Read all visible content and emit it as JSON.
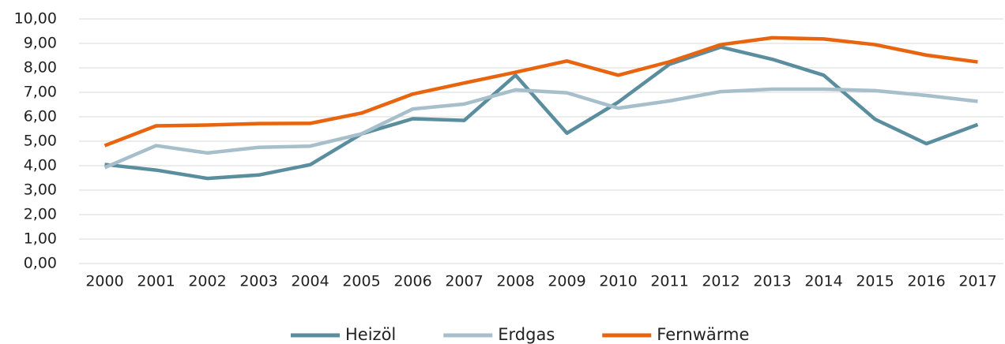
{
  "chart_data": {
    "type": "line",
    "categories": [
      "2000",
      "2001",
      "2002",
      "2003",
      "2004",
      "2005",
      "2006",
      "2007",
      "2008",
      "2009",
      "2010",
      "2011",
      "2012",
      "2013",
      "2014",
      "2015",
      "2016",
      "2017"
    ],
    "series": [
      {
        "name": "Heizöl",
        "color": "#5a8e9f",
        "values": [
          4.05,
          3.82,
          3.48,
          3.62,
          4.04,
          5.3,
          5.92,
          5.85,
          7.7,
          5.33,
          6.6,
          8.15,
          8.85,
          8.35,
          7.7,
          5.9,
          4.9,
          5.68
        ]
      },
      {
        "name": "Erdgas",
        "color": "#a6bfcb",
        "values": [
          3.92,
          4.82,
          4.52,
          4.75,
          4.8,
          5.3,
          6.32,
          6.52,
          7.1,
          6.98,
          6.35,
          6.65,
          7.03,
          7.13,
          7.13,
          7.07,
          6.87,
          6.63
        ]
      },
      {
        "name": "Fernwärme",
        "color": "#e8640f",
        "values": [
          4.82,
          5.63,
          5.66,
          5.72,
          5.73,
          6.15,
          6.93,
          7.38,
          7.82,
          8.28,
          7.7,
          8.25,
          8.95,
          9.23,
          9.18,
          8.95,
          8.52,
          8.24
        ]
      }
    ],
    "ylim": [
      0,
      10
    ],
    "yticks": [
      {
        "value": 0,
        "label": "0,00"
      },
      {
        "value": 1,
        "label": "1,00"
      },
      {
        "value": 2,
        "label": "2,00"
      },
      {
        "value": 3,
        "label": "3,00"
      },
      {
        "value": 4,
        "label": "4,00"
      },
      {
        "value": 5,
        "label": "5,00"
      },
      {
        "value": 6,
        "label": "6,00"
      },
      {
        "value": 7,
        "label": "7,00"
      },
      {
        "value": 8,
        "label": "8,00"
      },
      {
        "value": 9,
        "label": "9,00"
      },
      {
        "value": 10,
        "label": "10,00"
      }
    ],
    "grid": true,
    "legend": "bottom"
  }
}
